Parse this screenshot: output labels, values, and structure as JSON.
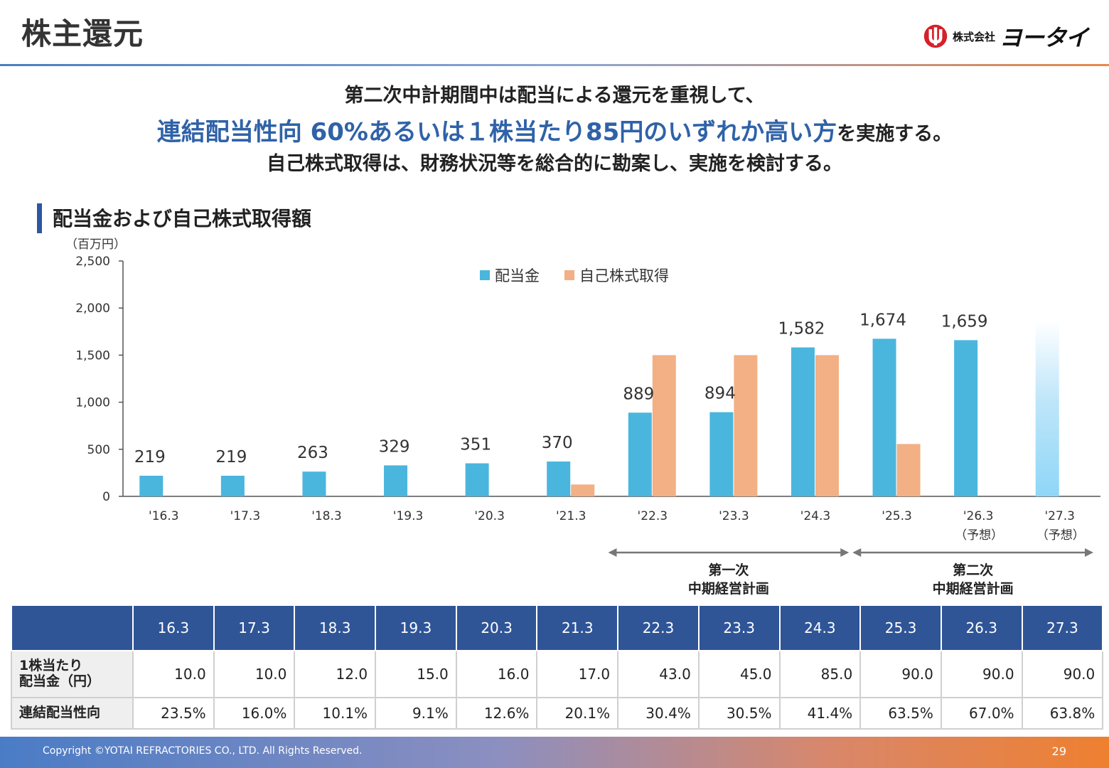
{
  "header": {
    "title": "株主還元",
    "logo_small": "株式会社",
    "logo_big": "ヨータイ"
  },
  "message": {
    "line1": "第二次中計期間中は配当による還元を重視して、",
    "line2_highlight": "連結配当性向 60%あるいは１株当たり85円のいずれか高い方",
    "line2_tail": "を実施する。",
    "line3": "自己株式取得は、財務状況等を総合的に勘案し、実施を検討する。"
  },
  "section": {
    "title": "配当金および自己株式取得額"
  },
  "colors": {
    "dividend": "#4ab6de",
    "buyback": "#f2b084",
    "forecast": "#a7dcf6",
    "axis": "#555555",
    "header_blue": "#2f5597"
  },
  "chart_data": {
    "type": "bar",
    "unit_label": "（百万円）",
    "categories": [
      "'16.3",
      "'17.3",
      "'18.3",
      "'19.3",
      "'20.3",
      "'21.3",
      "'22.3",
      "'23.3",
      "'24.3",
      "'25.3",
      "'26.3",
      "'27.3"
    ],
    "category_sublabels": [
      "",
      "",
      "",
      "",
      "",
      "",
      "",
      "",
      "",
      "",
      "（予想）",
      "（予想）"
    ],
    "series": [
      {
        "name": "配当金",
        "values": [
          219,
          219,
          263,
          329,
          351,
          370,
          889,
          894,
          1582,
          1674,
          1659,
          null
        ],
        "labels": [
          "219",
          "219",
          "263",
          "329",
          "351",
          "370",
          "889",
          "894",
          "1,582",
          "1,674",
          "1,659",
          ""
        ]
      },
      {
        "name": "自己株式取得",
        "values": [
          0,
          0,
          0,
          0,
          0,
          126,
          1500,
          1500,
          1500,
          556,
          0,
          null
        ]
      }
    ],
    "forecast_category": "'27.3",
    "yticks": [
      "0",
      "500",
      "1,000",
      "1,500",
      "2,000",
      "2,500"
    ],
    "ylim": [
      0,
      2500
    ],
    "legend_position": "top-center",
    "grid": false,
    "plans": [
      {
        "line1": "第一次",
        "line2": "中期経営計画",
        "from": "'22.3",
        "to": "'24.3"
      },
      {
        "line1": "第二次",
        "line2": "中期経営計画",
        "from": "'25.3",
        "to": "'27.3"
      }
    ]
  },
  "table": {
    "years": [
      "16.3",
      "17.3",
      "18.3",
      "19.3",
      "20.3",
      "21.3",
      "22.3",
      "23.3",
      "24.3",
      "25.3",
      "26.3",
      "27.3"
    ],
    "rows": [
      {
        "label_line1": "1株当たり",
        "label_line2": "配当金（円）",
        "values": [
          "10.0",
          "10.0",
          "12.0",
          "15.0",
          "16.0",
          "17.0",
          "43.0",
          "45.0",
          "85.0",
          "90.0",
          "90.0",
          "90.0"
        ]
      },
      {
        "label_line1": "連結配当性向",
        "label_line2": "",
        "values": [
          "23.5%",
          "16.0%",
          "10.1%",
          "9.1%",
          "12.6%",
          "20.1%",
          "30.4%",
          "30.5%",
          "41.4%",
          "63.5%",
          "67.0%",
          "63.8%"
        ]
      }
    ]
  },
  "footer": {
    "copyright": "Copyright ©YOTAI REFRACTORIES CO., LTD. All Rights Reserved.",
    "page": "29"
  }
}
